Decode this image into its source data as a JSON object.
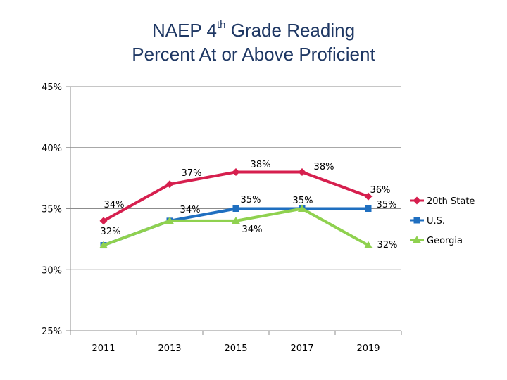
{
  "chart_data": {
    "type": "line",
    "title_main_prefix": "NAEP 4",
    "title_main_sup": "th",
    "title_main_suffix": " Grade Reading",
    "title_line2": "Percent At or Above Proficient",
    "x": [
      "2011",
      "2013",
      "2015",
      "2017",
      "2019"
    ],
    "ylim": [
      25,
      45
    ],
    "y_ticks": [
      25,
      30,
      35,
      40,
      45
    ],
    "y_tick_labels": [
      "25%",
      "30%",
      "35%",
      "40%",
      "45%"
    ],
    "grid": false,
    "legend_position": "right",
    "series": [
      {
        "name": "20th State",
        "color": "#d61f4e",
        "marker": "diamond",
        "values": [
          34,
          37,
          38,
          38,
          36
        ]
      },
      {
        "name": "U.S.",
        "color": "#1f6fc0",
        "marker": "square",
        "values": [
          32,
          34,
          35,
          35,
          35
        ]
      },
      {
        "name": "Georgia",
        "color": "#8fd14f",
        "marker": "triangle",
        "values": [
          32,
          34,
          34,
          35,
          32
        ]
      }
    ],
    "data_labels": [
      {
        "text": "34%"
      },
      {
        "text": "37%"
      },
      {
        "text": "38%"
      },
      {
        "text": "38%"
      },
      {
        "text": "36%"
      },
      {
        "text": "32%"
      },
      {
        "text": "34%"
      },
      {
        "text": "35%"
      },
      {
        "text": "35%"
      },
      {
        "text": "35%"
      },
      {
        "text": "34%"
      },
      {
        "text": "32%"
      }
    ]
  }
}
